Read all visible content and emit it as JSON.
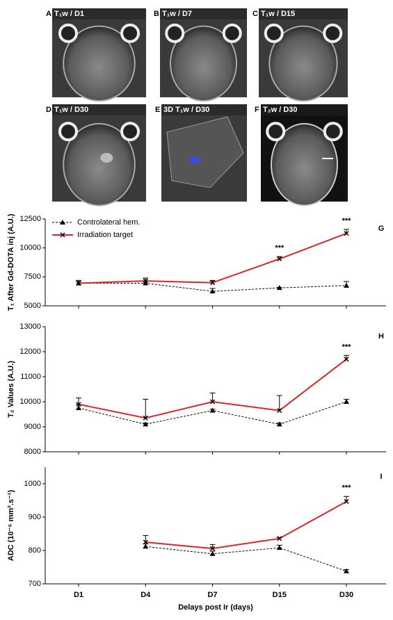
{
  "images": [
    {
      "letter": "A",
      "label": "T₁w / D1"
    },
    {
      "letter": "B",
      "label": "T₁w / D7"
    },
    {
      "letter": "C",
      "label": "T₁w / D15"
    },
    {
      "letter": "D",
      "label": "T₁w / D30"
    },
    {
      "letter": "E",
      "label": "3D T₁w / D30"
    },
    {
      "letter": "F",
      "label": "T₂w / D30"
    }
  ],
  "chart_data": [
    {
      "type": "line",
      "panel": "G",
      "ylabel": "T₁ After Gd-DOTA inj (A.U.)",
      "categories": [
        "D1",
        "D4",
        "D7",
        "D15",
        "D30"
      ],
      "series": [
        {
          "name": "Controlateral hem.",
          "color": "#000000",
          "style": "dashed",
          "marker": "triangle",
          "values": [
            6950,
            6950,
            6250,
            6550,
            6750
          ],
          "errors": [
            250,
            150,
            250,
            50,
            350
          ]
        },
        {
          "name": "Irradiation target",
          "color": "#e0232a",
          "style": "solid",
          "marker": "x",
          "values": [
            6950,
            7150,
            7000,
            9050,
            11250
          ],
          "errors": [
            150,
            250,
            200,
            200,
            350
          ]
        }
      ],
      "annotations": [
        {
          "text": "***",
          "x": "D15"
        },
        {
          "text": "***",
          "x": "D30"
        }
      ],
      "ylim": [
        5000,
        12500
      ],
      "yticks": [
        5000,
        7500,
        10000,
        12500
      ],
      "legend": "upper left"
    },
    {
      "type": "line",
      "panel": "H",
      "ylabel": "T₂ Values (A.U.)",
      "categories": [
        "D1",
        "D4",
        "D7",
        "D15",
        "D30"
      ],
      "series": [
        {
          "name": "Controlateral hem.",
          "color": "#000000",
          "style": "dashed",
          "marker": "triangle",
          "values": [
            9750,
            9100,
            9650,
            9100,
            10000
          ],
          "errors": [
            150,
            50,
            50,
            50,
            100
          ]
        },
        {
          "name": "Irradiation target",
          "color": "#e0232a",
          "style": "solid",
          "marker": "x",
          "values": [
            9900,
            9350,
            10000,
            9650,
            11700
          ],
          "errors": [
            250,
            750,
            350,
            600,
            150
          ]
        }
      ],
      "annotations": [
        {
          "text": "***",
          "x": "D30"
        }
      ],
      "ylim": [
        8000,
        13000
      ],
      "yticks": [
        8000,
        9000,
        10000,
        11000,
        12000,
        13000
      ]
    },
    {
      "type": "line",
      "panel": "I",
      "ylabel": "ADC (10⁻⁶ mm².s⁻¹)",
      "xlabel": "Delays post Ir (days)",
      "categories": [
        "D1",
        "D4",
        "D7",
        "D15",
        "D30"
      ],
      "series": [
        {
          "name": "Controlateral hem.",
          "color": "#000000",
          "style": "dashed",
          "marker": "triangle",
          "values": [
            null,
            812,
            790,
            808,
            738
          ],
          "errors": [
            null,
            8,
            8,
            8,
            5
          ]
        },
        {
          "name": "Irradiation target",
          "color": "#e0232a",
          "style": "solid",
          "marker": "x",
          "values": [
            null,
            825,
            806,
            836,
            947
          ],
          "errors": [
            null,
            20,
            12,
            3,
            15
          ]
        }
      ],
      "annotations": [
        {
          "text": "***",
          "x": "D30"
        }
      ],
      "ylim": [
        700,
        1050
      ],
      "yticks": [
        700,
        800,
        900,
        1000
      ]
    }
  ]
}
